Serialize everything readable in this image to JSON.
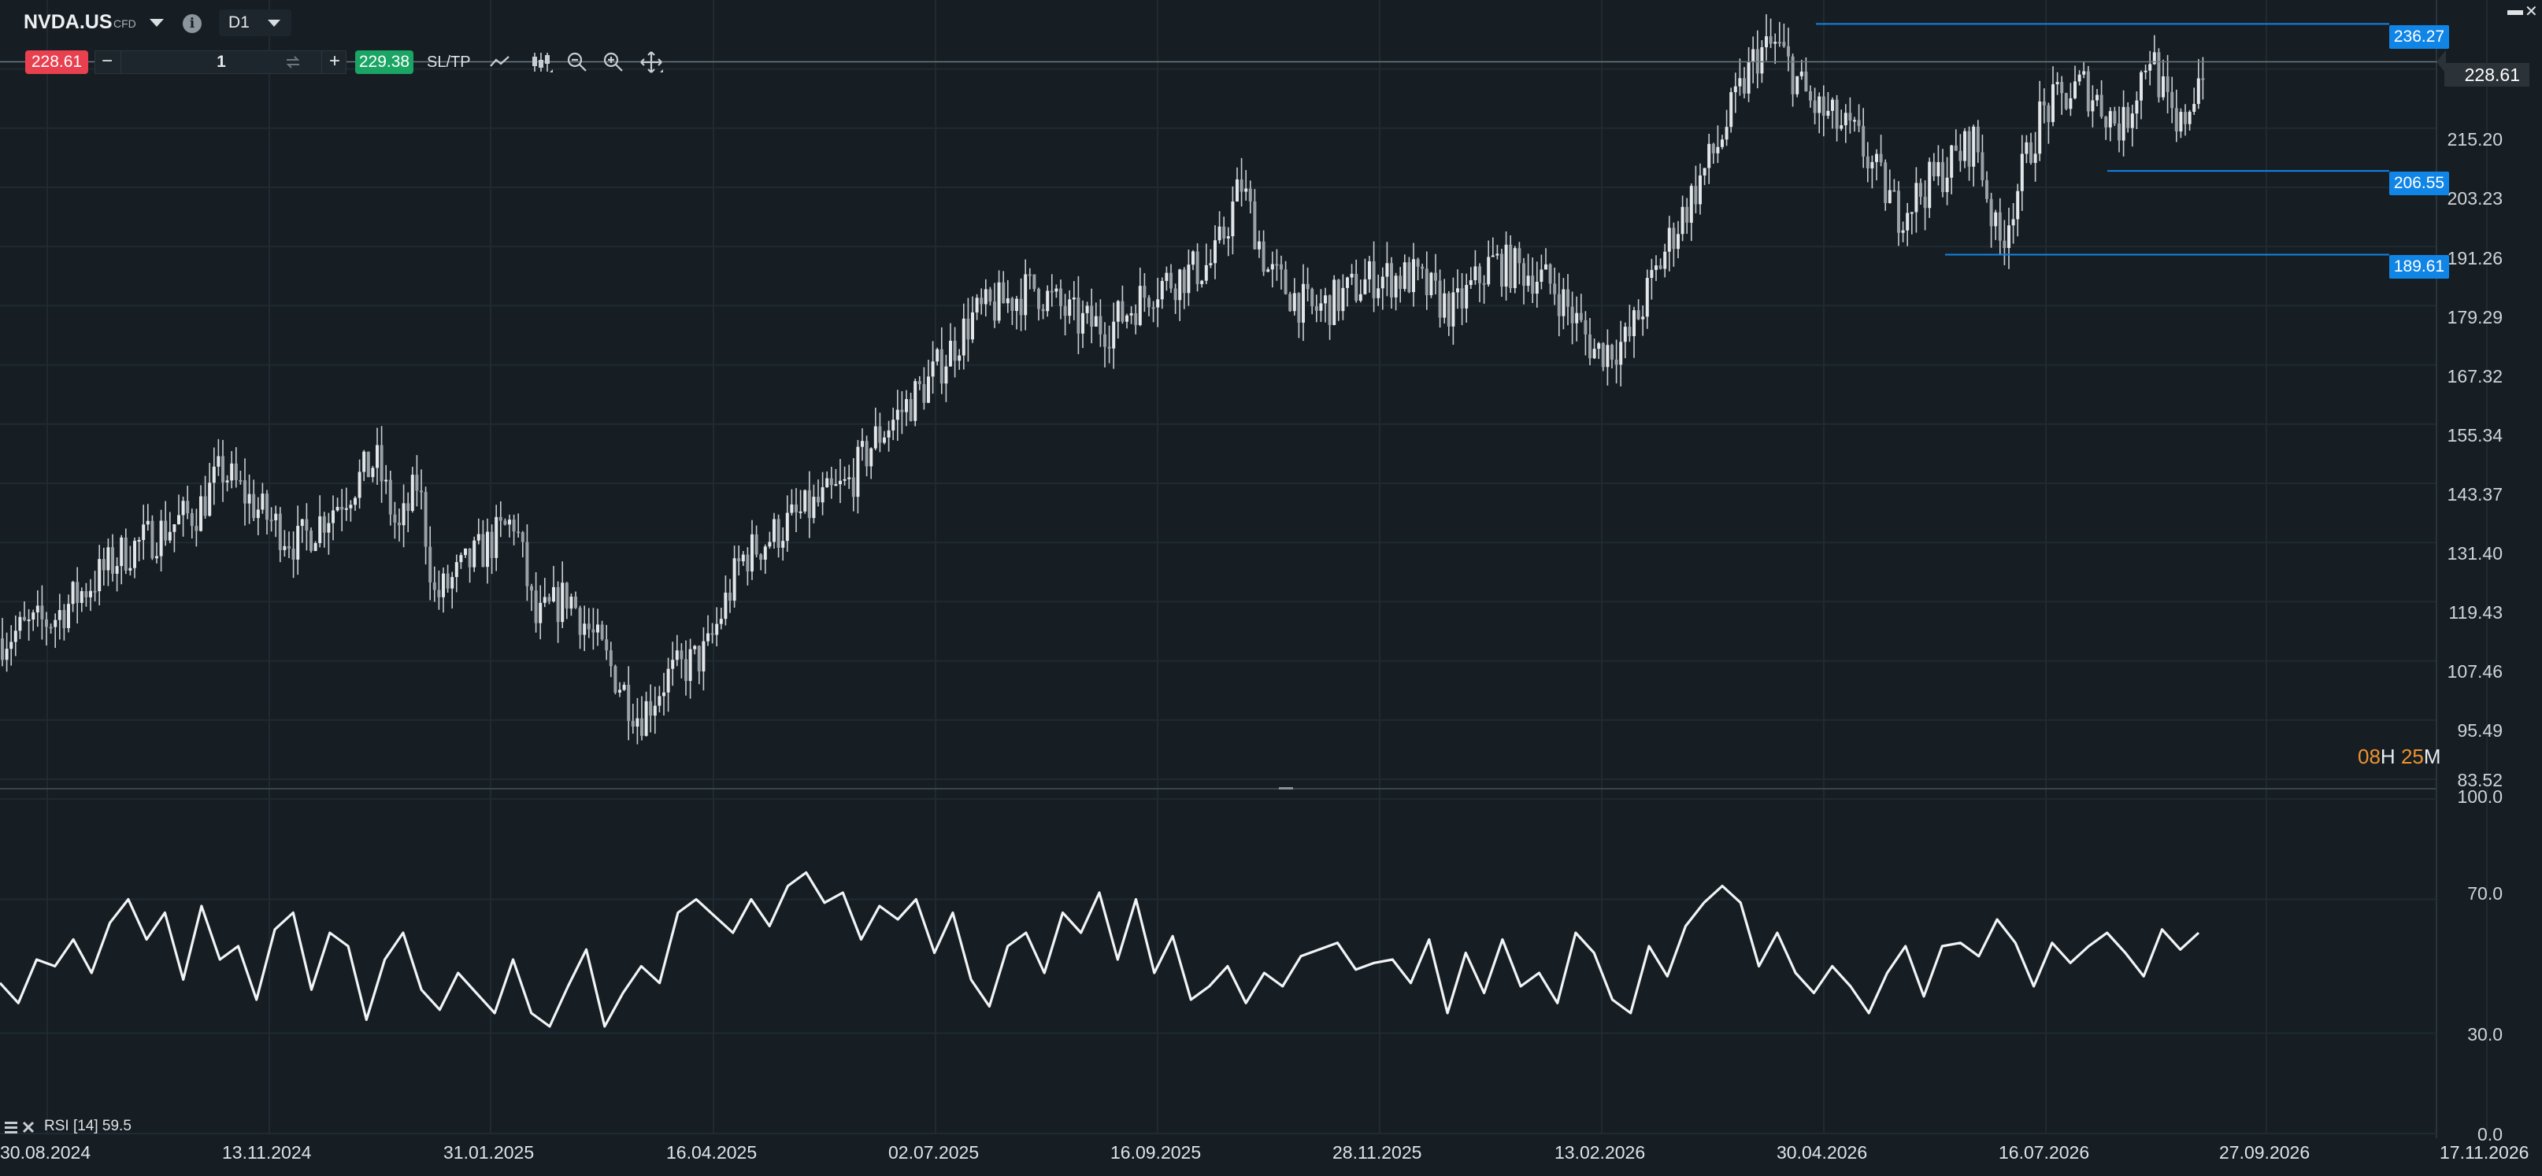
{
  "header": {
    "symbol": "NVDA.US",
    "instrument_type": "CFD",
    "timeframe": "D1",
    "info_icon": "info-icon",
    "sell_price": "228.61",
    "buy_price": "229.38",
    "quantity": "1",
    "minus_label": "−",
    "plus_label": "+",
    "sltp_label": "SL/TP",
    "tools": [
      "line-chart-icon",
      "candles-icon",
      "zoom-out-icon",
      "zoom-in-icon",
      "move-icon"
    ]
  },
  "price_axis": {
    "labels": [
      "215.20",
      "203.23",
      "191.26",
      "179.29",
      "167.32",
      "155.34",
      "143.37",
      "131.40",
      "119.43",
      "107.46",
      "95.49",
      "83.52"
    ],
    "current_price": "228.61"
  },
  "horizontal_lines": [
    {
      "label": "236.27",
      "value": 236.27
    },
    {
      "label": "206.55",
      "value": 206.55
    },
    {
      "label": "189.61",
      "value": 189.61
    }
  ],
  "time_axis": {
    "labels": [
      "30.08.2024",
      "13.11.2024",
      "31.01.2025",
      "16.04.2025",
      "02.07.2025",
      "16.09.2025",
      "28.11.2025",
      "13.02.2026",
      "30.04.2026",
      "16.07.2026",
      "27.09.2026",
      "17.11.2026"
    ]
  },
  "timer": {
    "hours": "08",
    "hours_unit": "H",
    "minutes": "25",
    "minutes_unit": "M"
  },
  "rsi_panel": {
    "label": "RSI [14] 59.5",
    "axis_labels": [
      "100.0",
      "70.0",
      "30.0",
      "0.0"
    ]
  },
  "colors": {
    "background": "#161e24",
    "grid": "#1f2a31",
    "candle": "#c9ced2",
    "hline": "#1185e6",
    "sell": "#e8404f",
    "buy": "#1aa564",
    "timer_orange": "#f0922e",
    "timer_white": "#e8ebed"
  },
  "chart_data": [
    {
      "type": "candlestick",
      "title": "NVDA.US",
      "x": [
        "30.08.2024",
        "13.11.2024",
        "31.01.2025",
        "16.04.2025",
        "02.07.2025",
        "16.09.2025",
        "28.11.2025",
        "13.02.2026",
        "30.04.2026",
        "16.07.2026",
        "27.09.2026"
      ],
      "close_path": [
        [
          "30.08.2024",
          112
        ],
        [
          "17.09.2024",
          116
        ],
        [
          "10.10.2024",
          129
        ],
        [
          "05.11.2024",
          138
        ],
        [
          "13.11.2024",
          146
        ],
        [
          "26.11.2024",
          138
        ],
        [
          "10.12.2024",
          131
        ],
        [
          "25.12.2024",
          140
        ],
        [
          "07.01.2025",
          148
        ],
        [
          "15.01.2025",
          133
        ],
        [
          "22.01.2025",
          144
        ],
        [
          "28.01.2025",
          120
        ],
        [
          "10.02.2025",
          128
        ],
        [
          "24.02.2025",
          136
        ],
        [
          "03.03.2025",
          115
        ],
        [
          "14.03.2025",
          121
        ],
        [
          "07.04.2025",
          96
        ],
        [
          "16.04.2025",
          104
        ],
        [
          "30.04.2025",
          109
        ],
        [
          "12.05.2025",
          128
        ],
        [
          "30.05.2025",
          136
        ],
        [
          "18.06.2025",
          143
        ],
        [
          "27.06.2025",
          152
        ],
        [
          "16.07.2025",
          164
        ],
        [
          "31.07.2025",
          177
        ],
        [
          "21.08.2025",
          183
        ],
        [
          "05.09.2025",
          176
        ],
        [
          "16.09.2025",
          175
        ],
        [
          "30.09.2025",
          183
        ],
        [
          "20.10.2025",
          188
        ],
        [
          "29.10.2025",
          204
        ],
        [
          "07.11.2025",
          186
        ],
        [
          "21.11.2025",
          178
        ],
        [
          "28.11.2025",
          180
        ],
        [
          "12.12.2025",
          185
        ],
        [
          "26.12.2025",
          185
        ],
        [
          "09.01.2026",
          178
        ],
        [
          "22.01.2026",
          188
        ],
        [
          "05.02.2026",
          186
        ],
        [
          "13.02.2026",
          183
        ],
        [
          "27.02.2026",
          170
        ],
        [
          "10.03.2026",
          172
        ],
        [
          "24.03.2026",
          192
        ],
        [
          "10.04.2026",
          212
        ],
        [
          "23.04.2026",
          230
        ],
        [
          "30.04.2026",
          232
        ],
        [
          "12.05.2026",
          220
        ],
        [
          "28.05.2026",
          213
        ],
        [
          "11.06.2026",
          198
        ],
        [
          "24.06.2026",
          205
        ],
        [
          "08.07.2026",
          213
        ],
        [
          "16.07.2026",
          191
        ],
        [
          "30.07.2026",
          218
        ],
        [
          "13.08.2026",
          224
        ],
        [
          "26.08.2026",
          215
        ],
        [
          "04.09.2026",
          231
        ],
        [
          "13.09.2026",
          213
        ],
        [
          "22.09.2026",
          228.61
        ]
      ],
      "ylim": [
        83.52,
        239
      ],
      "current_price": 228.61
    },
    {
      "type": "line",
      "title": "RSI [14] 59.5",
      "ylim": [
        0,
        100
      ],
      "gridlines": [
        30,
        70,
        100
      ],
      "last_value": 59.5,
      "values": [
        45,
        39,
        52,
        50,
        58,
        48,
        63,
        70,
        58,
        66,
        46,
        68,
        52,
        56,
        40,
        61,
        66,
        43,
        60,
        56,
        34,
        52,
        60,
        43,
        37,
        48,
        42,
        36,
        52,
        36,
        32,
        44,
        55,
        32,
        42,
        50,
        45,
        66,
        70,
        65,
        60,
        70,
        62,
        74,
        78,
        69,
        72,
        58,
        68,
        64,
        70,
        54,
        66,
        46,
        38,
        56,
        60,
        48,
        66,
        60,
        72,
        52,
        70,
        48,
        59,
        40,
        44,
        50,
        39,
        48,
        44,
        53,
        55,
        57,
        49,
        51,
        52,
        45,
        58,
        36,
        54,
        42,
        58,
        44,
        48,
        39,
        60,
        54,
        40,
        36,
        56,
        47,
        62,
        69,
        74,
        69,
        50,
        60,
        48,
        42,
        50,
        44,
        36,
        48,
        56,
        41,
        56,
        57,
        53,
        64,
        57,
        44,
        57,
        51,
        56,
        60,
        54,
        47,
        61,
        55,
        60
      ]
    }
  ]
}
